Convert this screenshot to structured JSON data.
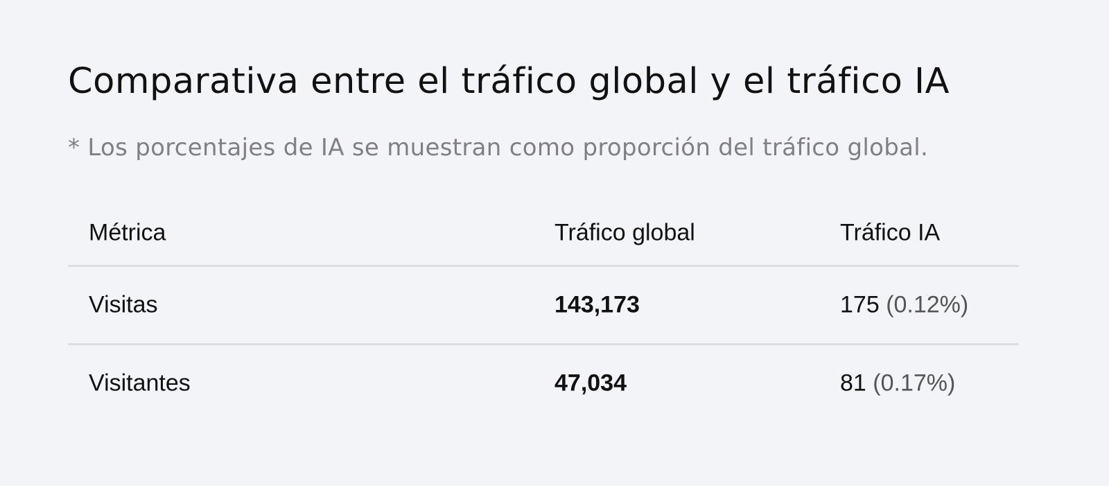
{
  "title": "Comparativa entre el tráfico global y el tráfico IA",
  "note": "*  Los porcentajes de IA se muestran como proporción del tráfico global.",
  "table": {
    "headers": [
      "Métrica",
      "Tráfico global",
      "Tráfico IA"
    ],
    "rows": [
      {
        "metric": "Visitas",
        "global": "143,173",
        "ai": "175",
        "ai_pct": "(0.12%)"
      },
      {
        "metric": "Visitantes",
        "global": "47,034",
        "ai": "81",
        "ai_pct": "(0.17%)"
      }
    ]
  }
}
